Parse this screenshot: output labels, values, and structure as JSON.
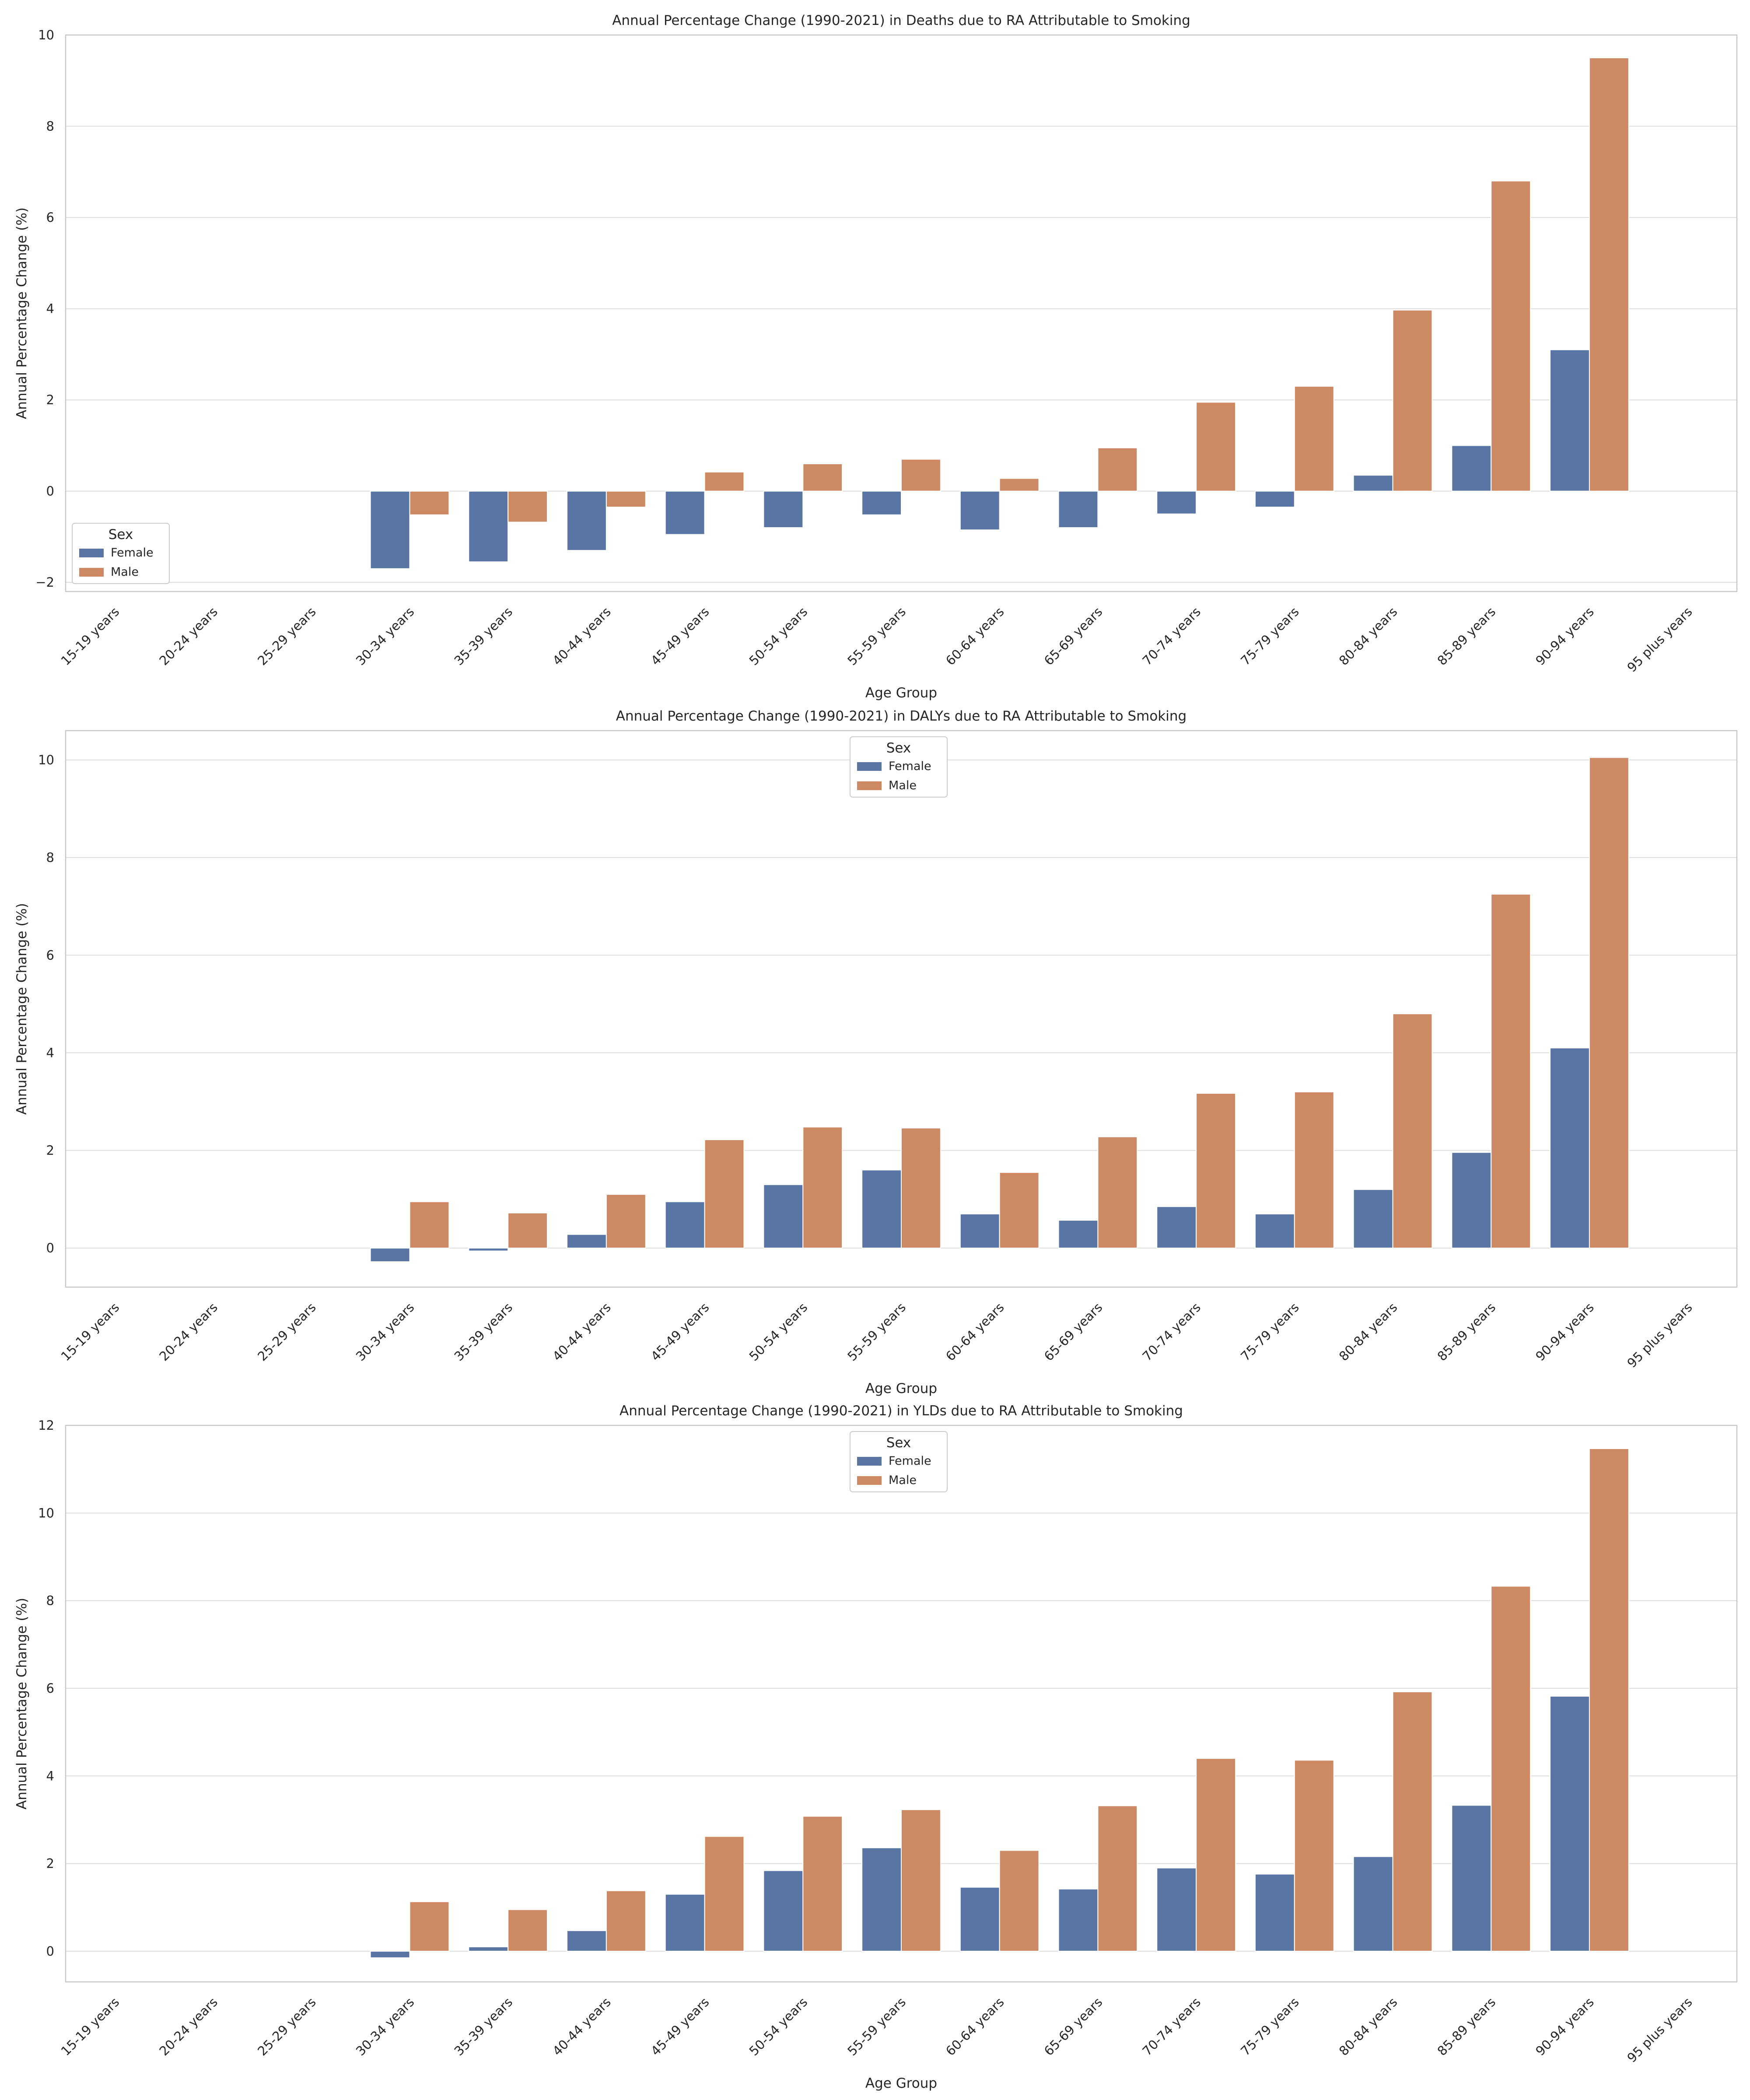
{
  "chart_data": [
    {
      "type": "bar",
      "title": "Annual Percentage Change (1990-2021) in Deaths due to RA Attributable to Smoking",
      "xlabel": "Age Group",
      "ylabel": "Annual Percentage Change (%)",
      "ylim": [
        -2.2,
        10.0
      ],
      "yticks": [
        "−2",
        "0",
        "2",
        "4",
        "6",
        "8",
        "10"
      ],
      "grid": true,
      "legend": {
        "title": "Sex",
        "placement": "lower-left"
      },
      "categories": [
        "15-19 years",
        "20-24 years",
        "25-29 years",
        "30-34 years",
        "35-39 years",
        "40-44 years",
        "45-49 years",
        "50-54 years",
        "55-59 years",
        "60-64 years",
        "65-69 years",
        "70-74 years",
        "75-79 years",
        "80-84 years",
        "85-89 years",
        "90-94 years",
        "95 plus years"
      ],
      "series": [
        {
          "name": "Female",
          "color": "#5875a4",
          "values": [
            null,
            null,
            null,
            -1.7,
            -1.55,
            -1.3,
            -0.95,
            -0.8,
            -0.52,
            -0.85,
            -0.8,
            -0.5,
            -0.35,
            0.35,
            1.0,
            3.1,
            null
          ]
        },
        {
          "name": "Male",
          "color": "#cc8963",
          "values": [
            null,
            null,
            null,
            -0.52,
            -0.68,
            -0.35,
            0.42,
            0.6,
            0.7,
            0.28,
            0.95,
            1.95,
            2.3,
            3.97,
            6.8,
            9.5,
            null
          ]
        }
      ]
    },
    {
      "type": "bar",
      "title": "Annual Percentage Change (1990-2021) in DALYs due to RA Attributable to Smoking",
      "xlabel": "Age Group",
      "ylabel": "Annual Percentage Change (%)",
      "ylim": [
        -0.8,
        10.6
      ],
      "yticks": [
        "0",
        "2",
        "4",
        "6",
        "8",
        "10"
      ],
      "grid": true,
      "legend": {
        "title": "Sex",
        "placement": "upper-center"
      },
      "categories": [
        "15-19 years",
        "20-24 years",
        "25-29 years",
        "30-34 years",
        "35-39 years",
        "40-44 years",
        "45-49 years",
        "50-54 years",
        "55-59 years",
        "60-64 years",
        "65-69 years",
        "70-74 years",
        "75-79 years",
        "80-84 years",
        "85-89 years",
        "90-94 years",
        "95 plus years"
      ],
      "series": [
        {
          "name": "Female",
          "color": "#5875a4",
          "values": [
            null,
            null,
            null,
            -0.28,
            -0.06,
            0.28,
            0.95,
            1.3,
            1.6,
            0.7,
            0.57,
            0.85,
            0.7,
            1.2,
            1.96,
            4.1,
            null
          ]
        },
        {
          "name": "Male",
          "color": "#cc8963",
          "values": [
            null,
            null,
            null,
            0.95,
            0.72,
            1.1,
            2.22,
            2.48,
            2.46,
            1.55,
            2.28,
            3.17,
            3.2,
            4.8,
            7.25,
            10.05,
            null
          ]
        }
      ]
    },
    {
      "type": "bar",
      "title": "Annual Percentage Change (1990-2021) in YLDs due to RA Attributable to Smoking",
      "xlabel": "Age Group",
      "ylabel": "Annual Percentage Change (%)",
      "ylim": [
        -0.7,
        12.0
      ],
      "yticks": [
        "0",
        "2",
        "4",
        "6",
        "8",
        "10",
        "12"
      ],
      "grid": true,
      "legend": {
        "title": "Sex",
        "placement": "upper-center"
      },
      "categories": [
        "15-19 years",
        "20-24 years",
        "25-29 years",
        "30-34 years",
        "35-39 years",
        "40-44 years",
        "45-49 years",
        "50-54 years",
        "55-59 years",
        "60-64 years",
        "65-69 years",
        "70-74 years",
        "75-79 years",
        "80-84 years",
        "85-89 years",
        "90-94 years",
        "95 plus years"
      ],
      "series": [
        {
          "name": "Female",
          "color": "#5875a4",
          "values": [
            null,
            null,
            null,
            -0.15,
            0.1,
            0.47,
            1.3,
            1.84,
            2.36,
            1.46,
            1.42,
            1.9,
            1.76,
            2.16,
            3.33,
            5.82,
            null
          ]
        },
        {
          "name": "Male",
          "color": "#cc8963",
          "values": [
            null,
            null,
            null,
            1.13,
            0.95,
            1.38,
            2.62,
            3.08,
            3.23,
            2.3,
            3.32,
            4.4,
            4.36,
            5.92,
            8.33,
            11.47,
            null
          ]
        }
      ]
    }
  ]
}
